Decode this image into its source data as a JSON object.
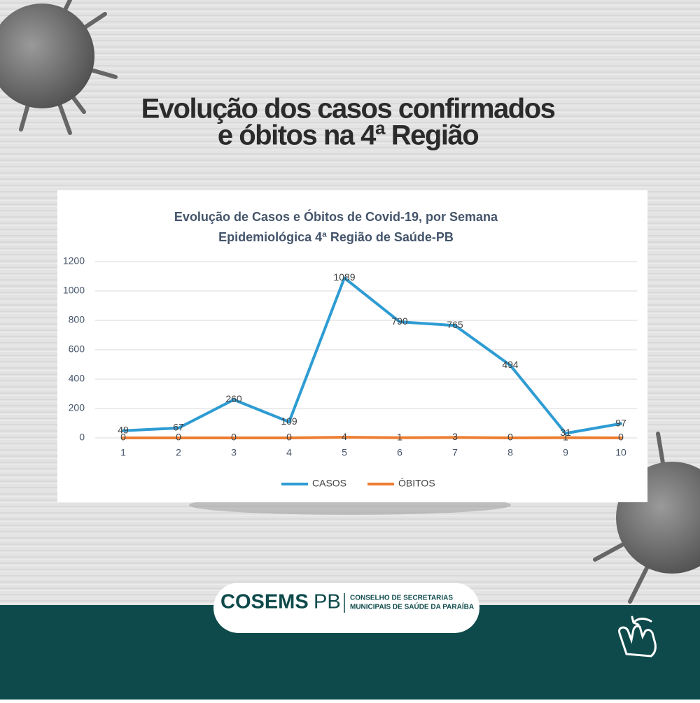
{
  "header": {
    "title": [
      "Evolução dos casos confirmados",
      "e óbitos na 4ª Região"
    ]
  },
  "chart_data": {
    "type": "line",
    "title": [
      "Evolução de Casos e Óbitos de Covid-19, por Semana",
      "Epidemiológica 4ª Região de Saúde-PB"
    ],
    "categories": [
      "1",
      "2",
      "3",
      "4",
      "5",
      "6",
      "7",
      "8",
      "9",
      "10"
    ],
    "series": [
      {
        "name": "CASOS",
        "color": "#2e9cd3",
        "values": [
          49,
          67,
          260,
          109,
          1089,
          790,
          765,
          494,
          31,
          97
        ]
      },
      {
        "name": "ÓBITOS",
        "color": "#ed7d31",
        "values": [
          0,
          0,
          0,
          0,
          4,
          1,
          3,
          0,
          1,
          0
        ]
      }
    ],
    "ylim": [
      0,
      1200
    ],
    "yticks": [
      0,
      200,
      400,
      600,
      800,
      1000,
      1200
    ],
    "grid": true,
    "legend": "bottom",
    "data_labels": true
  },
  "footer": {
    "logo": "COSEMS",
    "logo_suffix": "PB",
    "org": [
      "CONSELHO DE SECRETARIAS",
      "MUNICIPAIS DE SAÚDE DA PARAÍBA"
    ]
  }
}
